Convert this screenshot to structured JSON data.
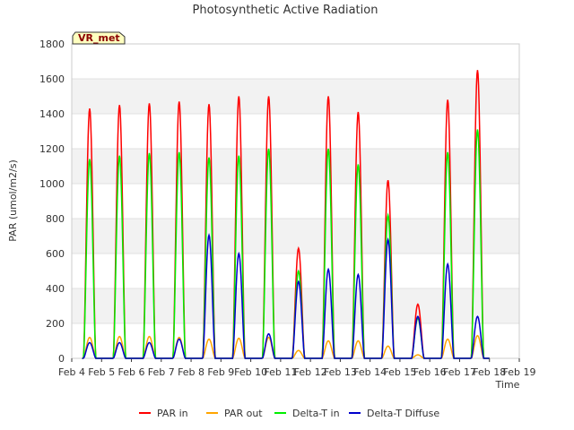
{
  "chart_data": {
    "type": "line",
    "title": "Photosynthetic Active Radiation",
    "ylabel": "PAR (umol/m2/s)",
    "xlabel": "Time",
    "ylim": [
      0,
      1800
    ],
    "yticks": [
      0,
      200,
      400,
      600,
      800,
      1000,
      1200,
      1400,
      1600,
      1800
    ],
    "xlim": [
      4,
      19
    ],
    "x_ticks": [
      {
        "value": 4,
        "label": "Feb 4"
      },
      {
        "value": 5,
        "label": "Feb 5"
      },
      {
        "value": 6,
        "label": "Feb 6"
      },
      {
        "value": 7,
        "label": "Feb 7"
      },
      {
        "value": 8,
        "label": "Feb 8"
      },
      {
        "value": 9,
        "label": "Feb 9"
      },
      {
        "value": 10,
        "label": "Feb 10"
      },
      {
        "value": 11,
        "label": "Feb 11"
      },
      {
        "value": 12,
        "label": "Feb 12"
      },
      {
        "value": 13,
        "label": "Feb 13"
      },
      {
        "value": 14,
        "label": "Feb 14"
      },
      {
        "value": 15,
        "label": "Feb 15"
      },
      {
        "value": 16,
        "label": "Feb 16"
      },
      {
        "value": 17,
        "label": "Feb 17"
      },
      {
        "value": 18,
        "label": "Feb 18"
      },
      {
        "value": 19,
        "label": "Feb 19"
      }
    ],
    "site_badge": "VR_met",
    "legend": [
      "PAR in",
      "PAR out",
      "Delta-T in",
      "Delta-T Diffuse"
    ],
    "series": [
      {
        "name": "PAR in",
        "color": "#ff0000",
        "daily_peak": [
          {
            "day": 4.6,
            "peak": 1430
          },
          {
            "day": 5.6,
            "peak": 1450
          },
          {
            "day": 6.6,
            "peak": 1460
          },
          {
            "day": 7.6,
            "peak": 1470
          },
          {
            "day": 8.6,
            "peak": 1455
          },
          {
            "day": 9.6,
            "peak": 1500
          },
          {
            "day": 10.6,
            "peak": 1500
          },
          {
            "day": 11.6,
            "peak": 630
          },
          {
            "day": 12.6,
            "peak": 1500
          },
          {
            "day": 13.6,
            "peak": 1410
          },
          {
            "day": 14.6,
            "peak": 1020
          },
          {
            "day": 15.6,
            "peak": 310
          },
          {
            "day": 16.6,
            "peak": 1480
          },
          {
            "day": 17.6,
            "peak": 1650
          }
        ]
      },
      {
        "name": "PAR out",
        "color": "#ffa500",
        "daily_peak": [
          {
            "day": 4.6,
            "peak": 120
          },
          {
            "day": 5.6,
            "peak": 125
          },
          {
            "day": 6.6,
            "peak": 125
          },
          {
            "day": 7.6,
            "peak": 120
          },
          {
            "day": 8.6,
            "peak": 110
          },
          {
            "day": 9.6,
            "peak": 115
          },
          {
            "day": 10.6,
            "peak": 120
          },
          {
            "day": 11.6,
            "peak": 45
          },
          {
            "day": 12.6,
            "peak": 100
          },
          {
            "day": 13.6,
            "peak": 100
          },
          {
            "day": 14.6,
            "peak": 70
          },
          {
            "day": 15.6,
            "peak": 20
          },
          {
            "day": 16.6,
            "peak": 110
          },
          {
            "day": 17.6,
            "peak": 130
          }
        ]
      },
      {
        "name": "Delta-T in",
        "color": "#00ee00",
        "daily_peak": [
          {
            "day": 4.6,
            "peak": 1140
          },
          {
            "day": 5.6,
            "peak": 1160
          },
          {
            "day": 6.6,
            "peak": 1175
          },
          {
            "day": 7.6,
            "peak": 1180
          },
          {
            "day": 8.6,
            "peak": 1150
          },
          {
            "day": 9.6,
            "peak": 1160
          },
          {
            "day": 10.6,
            "peak": 1200
          },
          {
            "day": 11.6,
            "peak": 500
          },
          {
            "day": 12.6,
            "peak": 1200
          },
          {
            "day": 13.6,
            "peak": 1110
          },
          {
            "day": 14.6,
            "peak": 820
          },
          {
            "day": 15.6,
            "peak": 230
          },
          {
            "day": 16.6,
            "peak": 1180
          },
          {
            "day": 17.6,
            "peak": 1310
          }
        ]
      },
      {
        "name": "Delta-T Diffuse",
        "color": "#0000cc",
        "daily_peak": [
          {
            "day": 4.6,
            "peak": 90
          },
          {
            "day": 5.6,
            "peak": 90
          },
          {
            "day": 6.6,
            "peak": 90
          },
          {
            "day": 7.6,
            "peak": 110
          },
          {
            "day": 8.6,
            "peak": 705
          },
          {
            "day": 9.6,
            "peak": 600
          },
          {
            "day": 10.6,
            "peak": 140
          },
          {
            "day": 11.6,
            "peak": 440
          },
          {
            "day": 12.6,
            "peak": 510
          },
          {
            "day": 13.6,
            "peak": 480
          },
          {
            "day": 14.6,
            "peak": 680
          },
          {
            "day": 15.6,
            "peak": 240
          },
          {
            "day": 16.6,
            "peak": 540
          },
          {
            "day": 17.6,
            "peak": 240
          }
        ]
      }
    ]
  }
}
